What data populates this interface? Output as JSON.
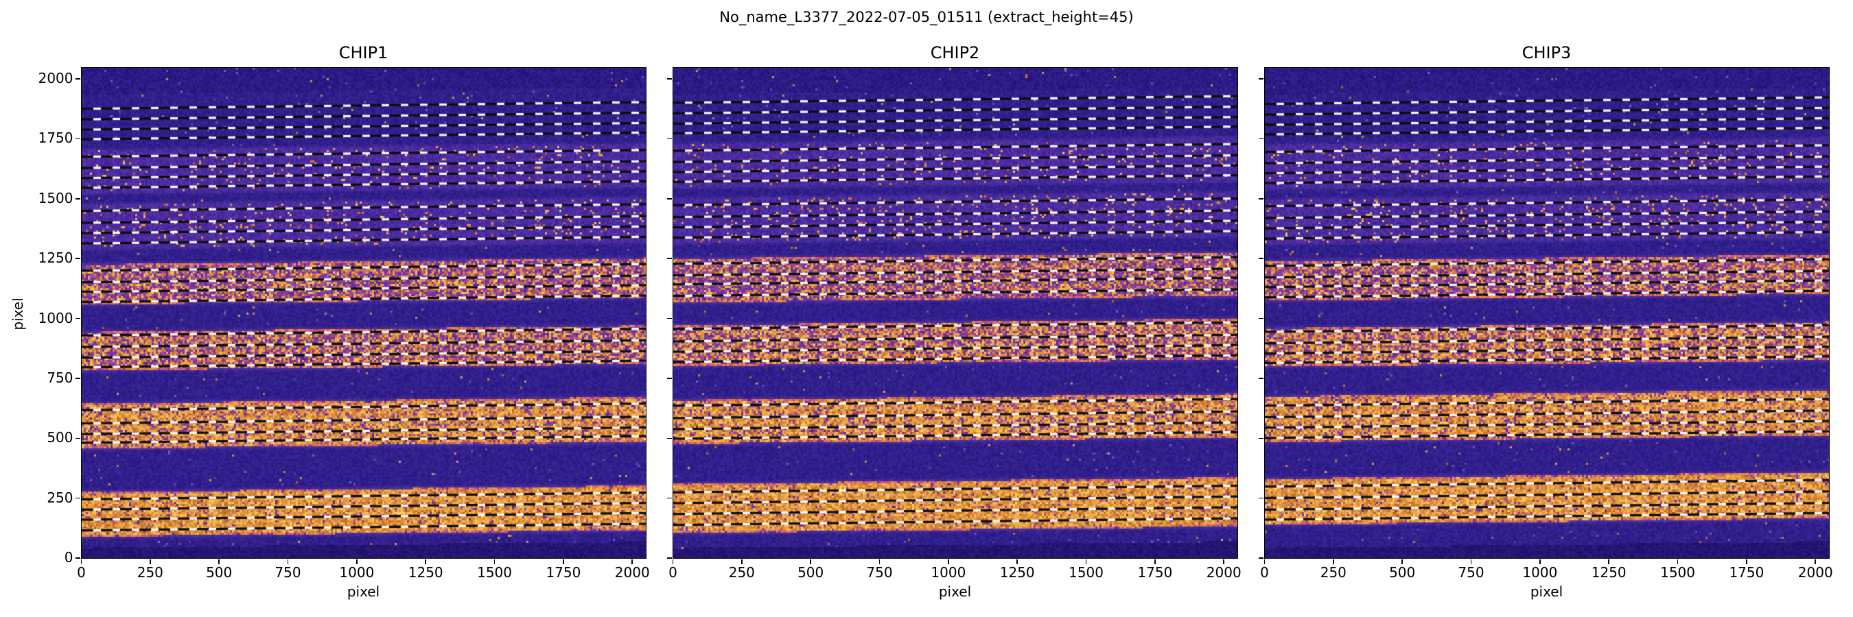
{
  "figure": {
    "title": "No_name_L3377_2022-07-05_01511  (extract_height=45)",
    "xlabel": "pixel",
    "ylabel": "pixel"
  },
  "chart_data": {
    "type": "heatmap",
    "description": "Three 2D echelle spectrograph detector images (raw flux, CMR-like colormap: indigo background, orange spectral-order bands) with dashed black/white extraction trace lines. extract_height=45 gives 4 boundary lines per order pair; traces rise slightly left to right.",
    "extract_height": 45,
    "xlim": [
      0,
      2048
    ],
    "ylim": [
      0,
      2046
    ],
    "x_ticks": [
      0,
      250,
      500,
      750,
      1000,
      1250,
      1500,
      1750,
      2000
    ],
    "y_ticks": [
      0,
      250,
      500,
      750,
      1000,
      1250,
      1500,
      1750,
      2000
    ],
    "trace_slope": 28,
    "colors": {
      "background": "#31208c",
      "background_top": "#2c1b85",
      "background_dark_strip": "#261573",
      "halo": "#4b2f9f",
      "faint_band": "#4c2ca0",
      "orange_palette": [
        "#f0ab49",
        "#e2923f",
        "#d67f3a",
        "#c9702f",
        "#f5c058",
        "#e8a33d"
      ],
      "purple_palette": [
        "#6f35a8",
        "#8a3f9b",
        "#5e2fa5",
        "#a34b8e"
      ],
      "warm_edge": [
        "#e08a42",
        "#d4606e",
        "#c94f86",
        "#e2923f"
      ],
      "speck_orange": "#c8853e",
      "speck_lavender": "#6a4fb8",
      "dash_black": "#0c0c0c",
      "dash_white": "#f8f8f8",
      "artifact": "#53389b",
      "spine": "#000000"
    },
    "panels": [
      {
        "label": "CHIP1",
        "bands": [
          {
            "y0": 1540,
            "y1": 1712,
            "i": 0.1
          },
          {
            "y0": 1308,
            "y1": 1486,
            "i": 0.16
          },
          {
            "y0": 1072,
            "y1": 1238,
            "i": 0.42
          },
          {
            "y0": 796,
            "y1": 956,
            "i": 0.52
          },
          {
            "y0": 470,
            "y1": 658,
            "i": 0.78
          },
          {
            "y0": 103,
            "y1": 288,
            "i": 0.92
          }
        ],
        "trace_lines": [
          1889,
          1845,
          1802,
          1762,
          1689,
          1642,
          1600,
          1559,
          1463,
          1413,
          1370,
          1327,
          1213,
          1165,
          1125,
          1082,
          943,
          895,
          850,
          810,
          631,
          576,
          531,
          495,
          259,
          216,
          174,
          129
        ],
        "artifacts": []
      },
      {
        "label": "CHIP2",
        "bands": [
          {
            "y0": 1562,
            "y1": 1738,
            "i": 0.1
          },
          {
            "y0": 1332,
            "y1": 1510,
            "i": 0.18
          },
          {
            "y0": 1080,
            "y1": 1262,
            "i": 0.42
          },
          {
            "y0": 815,
            "y1": 985,
            "i": 0.55
          },
          {
            "y0": 490,
            "y1": 672,
            "i": 0.78
          },
          {
            "y0": 118,
            "y1": 322,
            "i": 0.92
          }
        ],
        "trace_lines": [
          1914,
          1870,
          1827,
          1787,
          1714,
          1667,
          1625,
          1584,
          1487,
          1437,
          1394,
          1351,
          1242,
          1194,
          1156,
          1108,
          970,
          918,
          875,
          832,
          650,
          598,
          552,
          512,
          288,
          243,
          198,
          152
        ],
        "artifacts": []
      },
      {
        "label": "CHIP3",
        "bands": [
          {
            "y0": 1558,
            "y1": 1734,
            "i": 0.1
          },
          {
            "y0": 1328,
            "y1": 1506,
            "i": 0.18
          },
          {
            "y0": 1088,
            "y1": 1252,
            "i": 0.45
          },
          {
            "y0": 812,
            "y1": 972,
            "i": 0.6
          },
          {
            "y0": 498,
            "y1": 688,
            "i": 0.8
          },
          {
            "y0": 152,
            "y1": 344,
            "i": 0.92
          }
        ],
        "trace_lines": [
          1909,
          1865,
          1822,
          1782,
          1709,
          1662,
          1620,
          1579,
          1483,
          1433,
          1390,
          1347,
          1233,
          1185,
          1145,
          1102,
          958,
          910,
          868,
          828,
          650,
          602,
          558,
          515,
          312,
          264,
          216,
          174
        ],
        "artifacts": [
          {
            "x": 778,
            "y": 206,
            "r": 5
          }
        ]
      }
    ]
  }
}
